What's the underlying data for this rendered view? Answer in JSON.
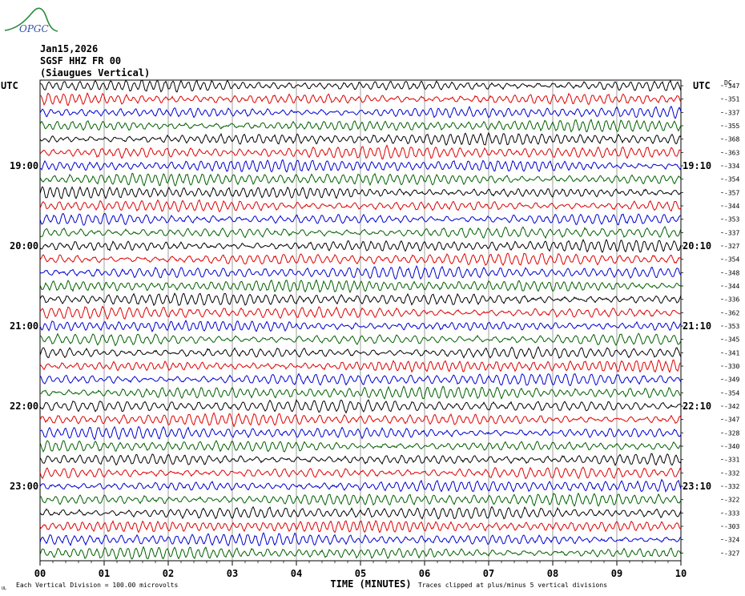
{
  "logo_text": "OPGC",
  "header": {
    "date": "Jan15,2026",
    "station": "SGSF HHZ FR 00",
    "location": "(Siaugues Vertical)"
  },
  "axis": {
    "left_label": "UTC",
    "right_label": "UTC",
    "dc_label": "DC",
    "xlabel": "TIME (MINUTES)"
  },
  "footer": {
    "scale_note": "Each Vertical Division =  100.00 microvolts",
    "clip_note": "Traces clipped at plus/minus 5 vertical divisions",
    "corner_mark": "UL"
  },
  "chart_data": {
    "type": "line",
    "title": "",
    "xlim": [
      0,
      10
    ],
    "x_ticks": [
      "00",
      "01",
      "02",
      "03",
      "04",
      "05",
      "06",
      "07",
      "08",
      "09",
      "10"
    ],
    "row_count": 36,
    "row_colors": [
      "#000000",
      "#e00000",
      "#0000d0",
      "#006000"
    ],
    "left_hour_labels": [
      {
        "row": 6,
        "label": "19:00"
      },
      {
        "row": 12,
        "label": "20:00"
      },
      {
        "row": 18,
        "label": "21:00"
      },
      {
        "row": 24,
        "label": "22:00"
      },
      {
        "row": 30,
        "label": "23:00"
      }
    ],
    "right_hour_labels": [
      {
        "row": 6,
        "label": "19:10"
      },
      {
        "row": 12,
        "label": "20:10"
      },
      {
        "row": 18,
        "label": "21:10"
      },
      {
        "row": 24,
        "label": "22:10"
      },
      {
        "row": 30,
        "label": "23:10"
      }
    ],
    "dc_offsets": [
      -347,
      -351,
      -337,
      -355,
      -368,
      -363,
      -334,
      -354,
      -357,
      -344,
      -353,
      -337,
      -327,
      -354,
      -348,
      -344,
      -336,
      -362,
      -353,
      -345,
      -341,
      -330,
      -349,
      -354,
      -342,
      -347,
      -328,
      -340,
      -331,
      -332,
      -332,
      -322,
      -333,
      -303,
      -324,
      -327
    ]
  }
}
